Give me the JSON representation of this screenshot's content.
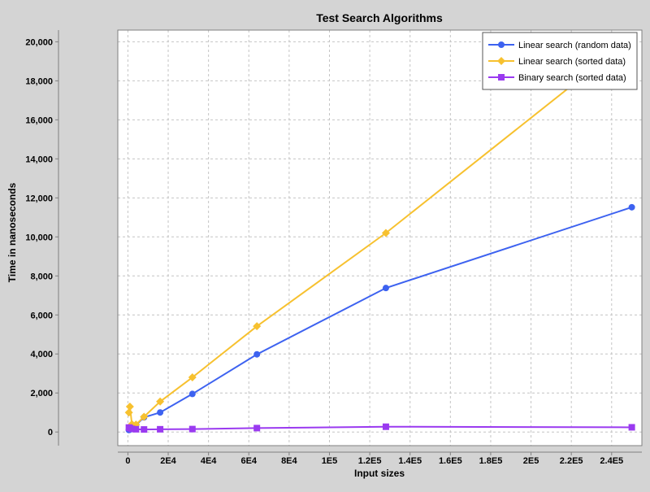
{
  "chart_data": {
    "type": "line",
    "title": "Test Search Algorithms",
    "xlabel": "Input sizes",
    "ylabel": "Time in nanoseconds",
    "xlim": [
      -5000,
      255000
    ],
    "ylim": [
      -700,
      20600
    ],
    "x_ticks": [
      {
        "value": 0,
        "label": "0"
      },
      {
        "value": 20000,
        "label": "2E4"
      },
      {
        "value": 40000,
        "label": "4E4"
      },
      {
        "value": 60000,
        "label": "6E4"
      },
      {
        "value": 80000,
        "label": "8E4"
      },
      {
        "value": 100000,
        "label": "1E5"
      },
      {
        "value": 120000,
        "label": "1.2E5"
      },
      {
        "value": 140000,
        "label": "1.4E5"
      },
      {
        "value": 160000,
        "label": "1.6E5"
      },
      {
        "value": 180000,
        "label": "1.8E5"
      },
      {
        "value": 200000,
        "label": "2E5"
      },
      {
        "value": 220000,
        "label": "2.2E5"
      },
      {
        "value": 240000,
        "label": "2.4E5"
      }
    ],
    "y_ticks": [
      {
        "value": 0,
        "label": "0"
      },
      {
        "value": 2000,
        "label": "2,000"
      },
      {
        "value": 4000,
        "label": "4,000"
      },
      {
        "value": 6000,
        "label": "6,000"
      },
      {
        "value": 8000,
        "label": "8,000"
      },
      {
        "value": 10000,
        "label": "10,000"
      },
      {
        "value": 12000,
        "label": "12,000"
      },
      {
        "value": 14000,
        "label": "14,000"
      },
      {
        "value": 16000,
        "label": "16,000"
      },
      {
        "value": 18000,
        "label": "18,000"
      },
      {
        "value": 20000,
        "label": "20,000"
      }
    ],
    "grid": true,
    "legend_position": "top-right",
    "series": [
      {
        "name": "Linear search (random data)",
        "color": "#3d62f0",
        "marker": "circle",
        "points": [
          [
            500,
            100
          ],
          [
            1000,
            120
          ],
          [
            2000,
            180
          ],
          [
            4000,
            350
          ],
          [
            8000,
            750
          ],
          [
            16000,
            1000
          ],
          [
            32000,
            1950
          ],
          [
            64000,
            3980
          ],
          [
            128000,
            7380
          ],
          [
            250000,
            11520
          ]
        ]
      },
      {
        "name": "Linear search (sorted data)",
        "color": "#f7c12f",
        "marker": "diamond",
        "points": [
          [
            500,
            1000
          ],
          [
            1000,
            1300
          ],
          [
            2000,
            400
          ],
          [
            4000,
            380
          ],
          [
            8000,
            780
          ],
          [
            16000,
            1560
          ],
          [
            32000,
            2800
          ],
          [
            64000,
            5420
          ],
          [
            128000,
            10200
          ],
          [
            250000,
            20200
          ]
        ]
      },
      {
        "name": "Binary search (sorted data)",
        "color": "#9a3af0",
        "marker": "square",
        "points": [
          [
            500,
            230
          ],
          [
            1000,
            200
          ],
          [
            2000,
            160
          ],
          [
            4000,
            140
          ],
          [
            8000,
            130
          ],
          [
            16000,
            140
          ],
          [
            32000,
            150
          ],
          [
            64000,
            200
          ],
          [
            128000,
            270
          ],
          [
            250000,
            240
          ]
        ]
      }
    ]
  }
}
